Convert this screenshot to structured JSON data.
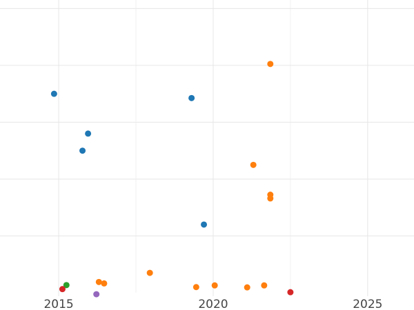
{
  "chart_data": {
    "type": "scatter",
    "title": "",
    "xlabel": "",
    "ylabel": "",
    "xlim": [
      2013.1,
      2026.5
    ],
    "ylim": [
      0,
      10.3
    ],
    "grid": true,
    "legend": "none",
    "x_ticks": [
      2015,
      2020,
      2025
    ],
    "x_tick_labels": [
      "2015",
      "2020",
      "2025"
    ],
    "y_gridlines": [
      2,
      4,
      6,
      8,
      10
    ],
    "series": [
      {
        "color": "#1f77b4",
        "points": [
          {
            "x": 2014.85,
            "y": 7.0
          },
          {
            "x": 2015.95,
            "y": 5.6
          },
          {
            "x": 2015.77,
            "y": 5.0
          },
          {
            "x": 2019.3,
            "y": 6.85
          },
          {
            "x": 2019.7,
            "y": 2.4
          }
        ]
      },
      {
        "color": "#ff7f0e",
        "points": [
          {
            "x": 2021.85,
            "y": 8.05
          },
          {
            "x": 2021.3,
            "y": 4.5
          },
          {
            "x": 2021.85,
            "y": 3.45
          },
          {
            "x": 2021.85,
            "y": 3.32
          },
          {
            "x": 2017.95,
            "y": 0.7
          },
          {
            "x": 2016.3,
            "y": 0.38
          },
          {
            "x": 2016.47,
            "y": 0.33
          },
          {
            "x": 2019.45,
            "y": 0.2
          },
          {
            "x": 2020.05,
            "y": 0.26
          },
          {
            "x": 2021.1,
            "y": 0.19
          },
          {
            "x": 2021.65,
            "y": 0.26
          }
        ]
      },
      {
        "color": "#2ca02c",
        "points": [
          {
            "x": 2015.25,
            "y": 0.27
          }
        ]
      },
      {
        "color": "#d62728",
        "points": [
          {
            "x": 2015.12,
            "y": 0.13
          },
          {
            "x": 2022.5,
            "y": 0.02
          }
        ]
      },
      {
        "color": "#9467bd",
        "points": [
          {
            "x": 2016.22,
            "y": -0.05
          }
        ]
      }
    ]
  }
}
